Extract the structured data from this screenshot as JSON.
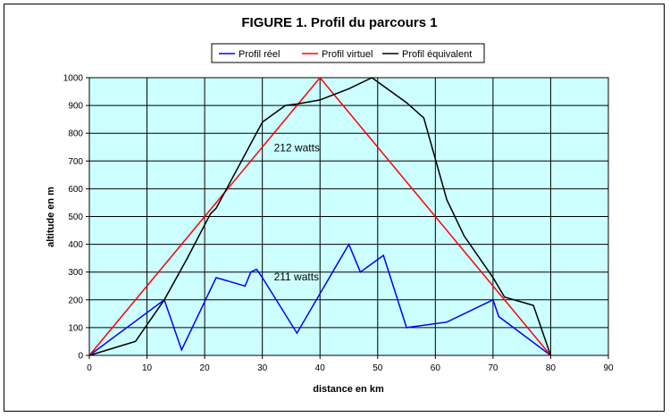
{
  "chart_data": {
    "type": "line",
    "title": "FIGURE 1. Profil du parcours 1",
    "xlabel": "distance en km",
    "ylabel": "altitude en m",
    "xlim": [
      0,
      90
    ],
    "ylim": [
      0,
      1000
    ],
    "xticks": [
      "0",
      "10",
      "20",
      "30",
      "40",
      "50",
      "60",
      "70",
      "80",
      "90"
    ],
    "yticks": [
      "0",
      "100",
      "200",
      "300",
      "400",
      "500",
      "600",
      "700",
      "800",
      "900",
      "1000"
    ],
    "grid": true,
    "plot_background": "#ccffff",
    "legend_placement": "top-center",
    "series": [
      {
        "name": "Profil réel",
        "color": "#0000ff",
        "points": [
          [
            0,
            0
          ],
          [
            13,
            200
          ],
          [
            16,
            20
          ],
          [
            22,
            280
          ],
          [
            27,
            250
          ],
          [
            28,
            300
          ],
          [
            29,
            310
          ],
          [
            30,
            280
          ],
          [
            36,
            80
          ],
          [
            45,
            400
          ],
          [
            47,
            300
          ],
          [
            51,
            360
          ],
          [
            55,
            100
          ],
          [
            62,
            120
          ],
          [
            70,
            200
          ],
          [
            71,
            140
          ],
          [
            80,
            0
          ]
        ]
      },
      {
        "name": "Profil virtuel",
        "color": "#ff0000",
        "points": [
          [
            0,
            0
          ],
          [
            40,
            1000
          ],
          [
            80,
            0
          ]
        ]
      },
      {
        "name": "Profil équivalent",
        "color": "#000000",
        "points": [
          [
            0,
            0
          ],
          [
            8,
            50
          ],
          [
            13,
            200
          ],
          [
            17,
            350
          ],
          [
            21,
            510
          ],
          [
            22,
            530
          ],
          [
            30,
            840
          ],
          [
            34,
            900
          ],
          [
            36,
            905
          ],
          [
            40,
            920
          ],
          [
            45,
            960
          ],
          [
            49,
            1000
          ],
          [
            55,
            910
          ],
          [
            58,
            855
          ],
          [
            62,
            560
          ],
          [
            65,
            430
          ],
          [
            70,
            280
          ],
          [
            72,
            210
          ],
          [
            77,
            180
          ],
          [
            80,
            0
          ]
        ]
      }
    ],
    "annotations": [
      {
        "text": "212 watts",
        "x": 32,
        "y": 735
      },
      {
        "text": "211 watts",
        "x": 32,
        "y": 270
      }
    ]
  }
}
